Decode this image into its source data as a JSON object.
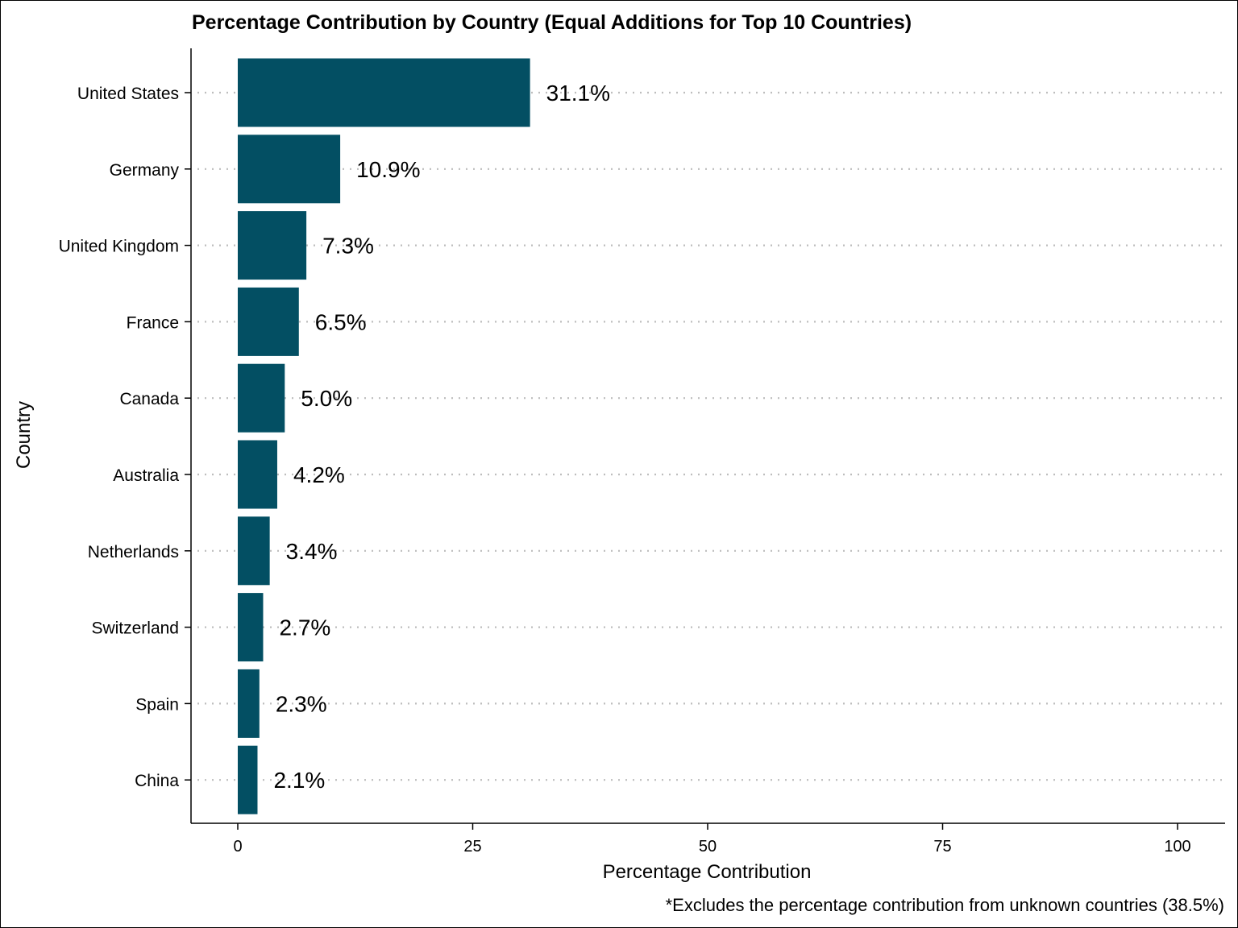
{
  "chart_data": {
    "type": "bar",
    "orientation": "horizontal",
    "title": "Percentage Contribution by Country (Equal Additions for Top 10 Countries)",
    "xlabel": "Percentage Contribution",
    "ylabel": "Country",
    "caption": "*Excludes the percentage contribution from unknown countries (38.5%)",
    "categories": [
      "United States",
      "Germany",
      "United Kingdom",
      "France",
      "Canada",
      "Australia",
      "Netherlands",
      "Switzerland",
      "Spain",
      "China"
    ],
    "values": [
      31.1,
      10.9,
      7.3,
      6.5,
      5.0,
      4.2,
      3.4,
      2.7,
      2.3,
      2.1
    ],
    "data_labels": [
      "31.1%",
      "10.9%",
      "7.3%",
      "6.5%",
      "5.0%",
      "4.2%",
      "3.4%",
      "2.7%",
      "2.3%",
      "2.1%"
    ],
    "xticks": [
      "0",
      "25",
      "50",
      "75",
      "100"
    ],
    "xlim": [
      0,
      100
    ],
    "grid": "horizontal dotted",
    "bar_color": "#034f63",
    "grid_color": "#bdbdbd"
  }
}
